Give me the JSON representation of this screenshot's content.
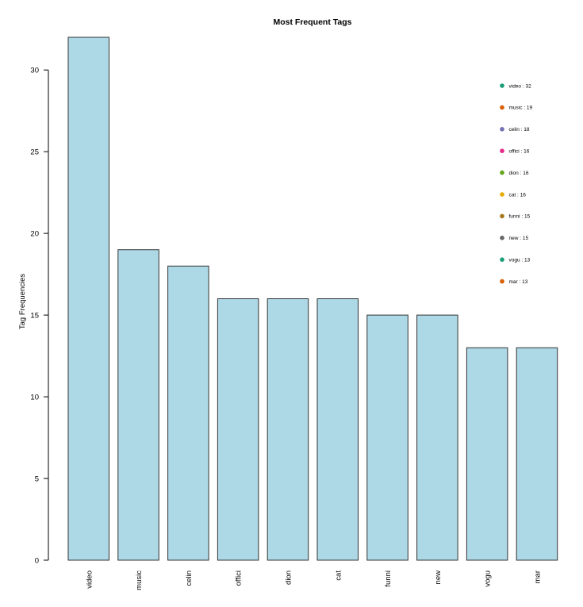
{
  "chart_data": {
    "type": "bar",
    "title": "Most Frequent Tags",
    "xlabel": "",
    "ylabel": "Tag Frequencies",
    "categories": [
      "video",
      "music",
      "celin",
      "offici",
      "dion",
      "cat",
      "funni",
      "new",
      "vogu",
      "mar"
    ],
    "values": [
      32,
      19,
      18,
      16,
      16,
      16,
      15,
      15,
      13,
      13
    ],
    "ylim": [
      0,
      32
    ],
    "yticks": [
      0,
      5,
      10,
      15,
      20,
      25,
      30
    ],
    "bar_color": "#add8e6",
    "bar_border_color": "#333333",
    "grid": false,
    "legend": {
      "placement": "top-right",
      "entries": [
        {
          "label": "video  :  32",
          "color": "#1b9e77"
        },
        {
          "label": "music  :  19",
          "color": "#d95f02"
        },
        {
          "label": "celin  :  18",
          "color": "#7570b3"
        },
        {
          "label": "offici  :  16",
          "color": "#e7298a"
        },
        {
          "label": "dion  :  16",
          "color": "#66a61e"
        },
        {
          "label": "cat  :  16",
          "color": "#e6ab02"
        },
        {
          "label": "funni  :  15",
          "color": "#a6761d"
        },
        {
          "label": "new  :  15",
          "color": "#666666"
        },
        {
          "label": "vogu  :  13",
          "color": "#1b9e77"
        },
        {
          "label": "mar  :  13",
          "color": "#d95f02"
        }
      ]
    }
  }
}
